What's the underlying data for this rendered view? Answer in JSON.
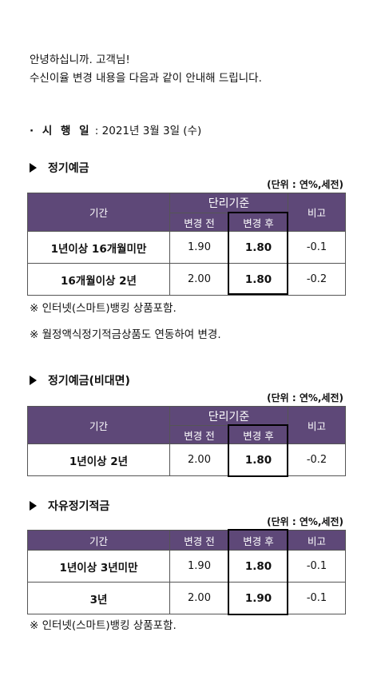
{
  "intro": {
    "line1": "안녕하십니까. 고객님!",
    "line2": "수신이율 변경 내용을 다음과 같이 안내해 드립니다."
  },
  "effective": {
    "label": "· 시 행 일",
    "date": ": 2021년 3월 3일 (수)"
  },
  "common": {
    "unit": "(단위 : 연%,세전)",
    "period_header": "기간",
    "simple_rate_header": "단리기준",
    "before_header": "변경 전",
    "after_header": "변경 후",
    "note_header": "비고"
  },
  "section1": {
    "title": "정기예금",
    "rows": [
      {
        "period": "1년이상 16개월미만",
        "before": "1.90",
        "after": "1.80",
        "note": "-0.1"
      },
      {
        "period": "16개월이상 2년",
        "before": "2.00",
        "after": "1.80",
        "note": "-0.2"
      }
    ],
    "notes": [
      "※ 인터넷(스마트)뱅킹 상품포함.",
      "※ 월정액식정기적금상품도 연동하여 변경."
    ]
  },
  "section2": {
    "title": "정기예금(비대면)",
    "rows": [
      {
        "period": "1년이상 2년",
        "before": "2.00",
        "after": "1.80",
        "note": "-0.2"
      }
    ]
  },
  "section3": {
    "title": "자유정기적금",
    "rows": [
      {
        "period": "1년이상 3년미만",
        "before": "1.90",
        "after": "1.80",
        "note": "-0.1"
      },
      {
        "period": "3년",
        "before": "2.00",
        "after": "1.90",
        "note": "-0.1"
      }
    ],
    "notes": [
      "※ 인터넷(스마트)뱅킹 상품포함."
    ]
  }
}
